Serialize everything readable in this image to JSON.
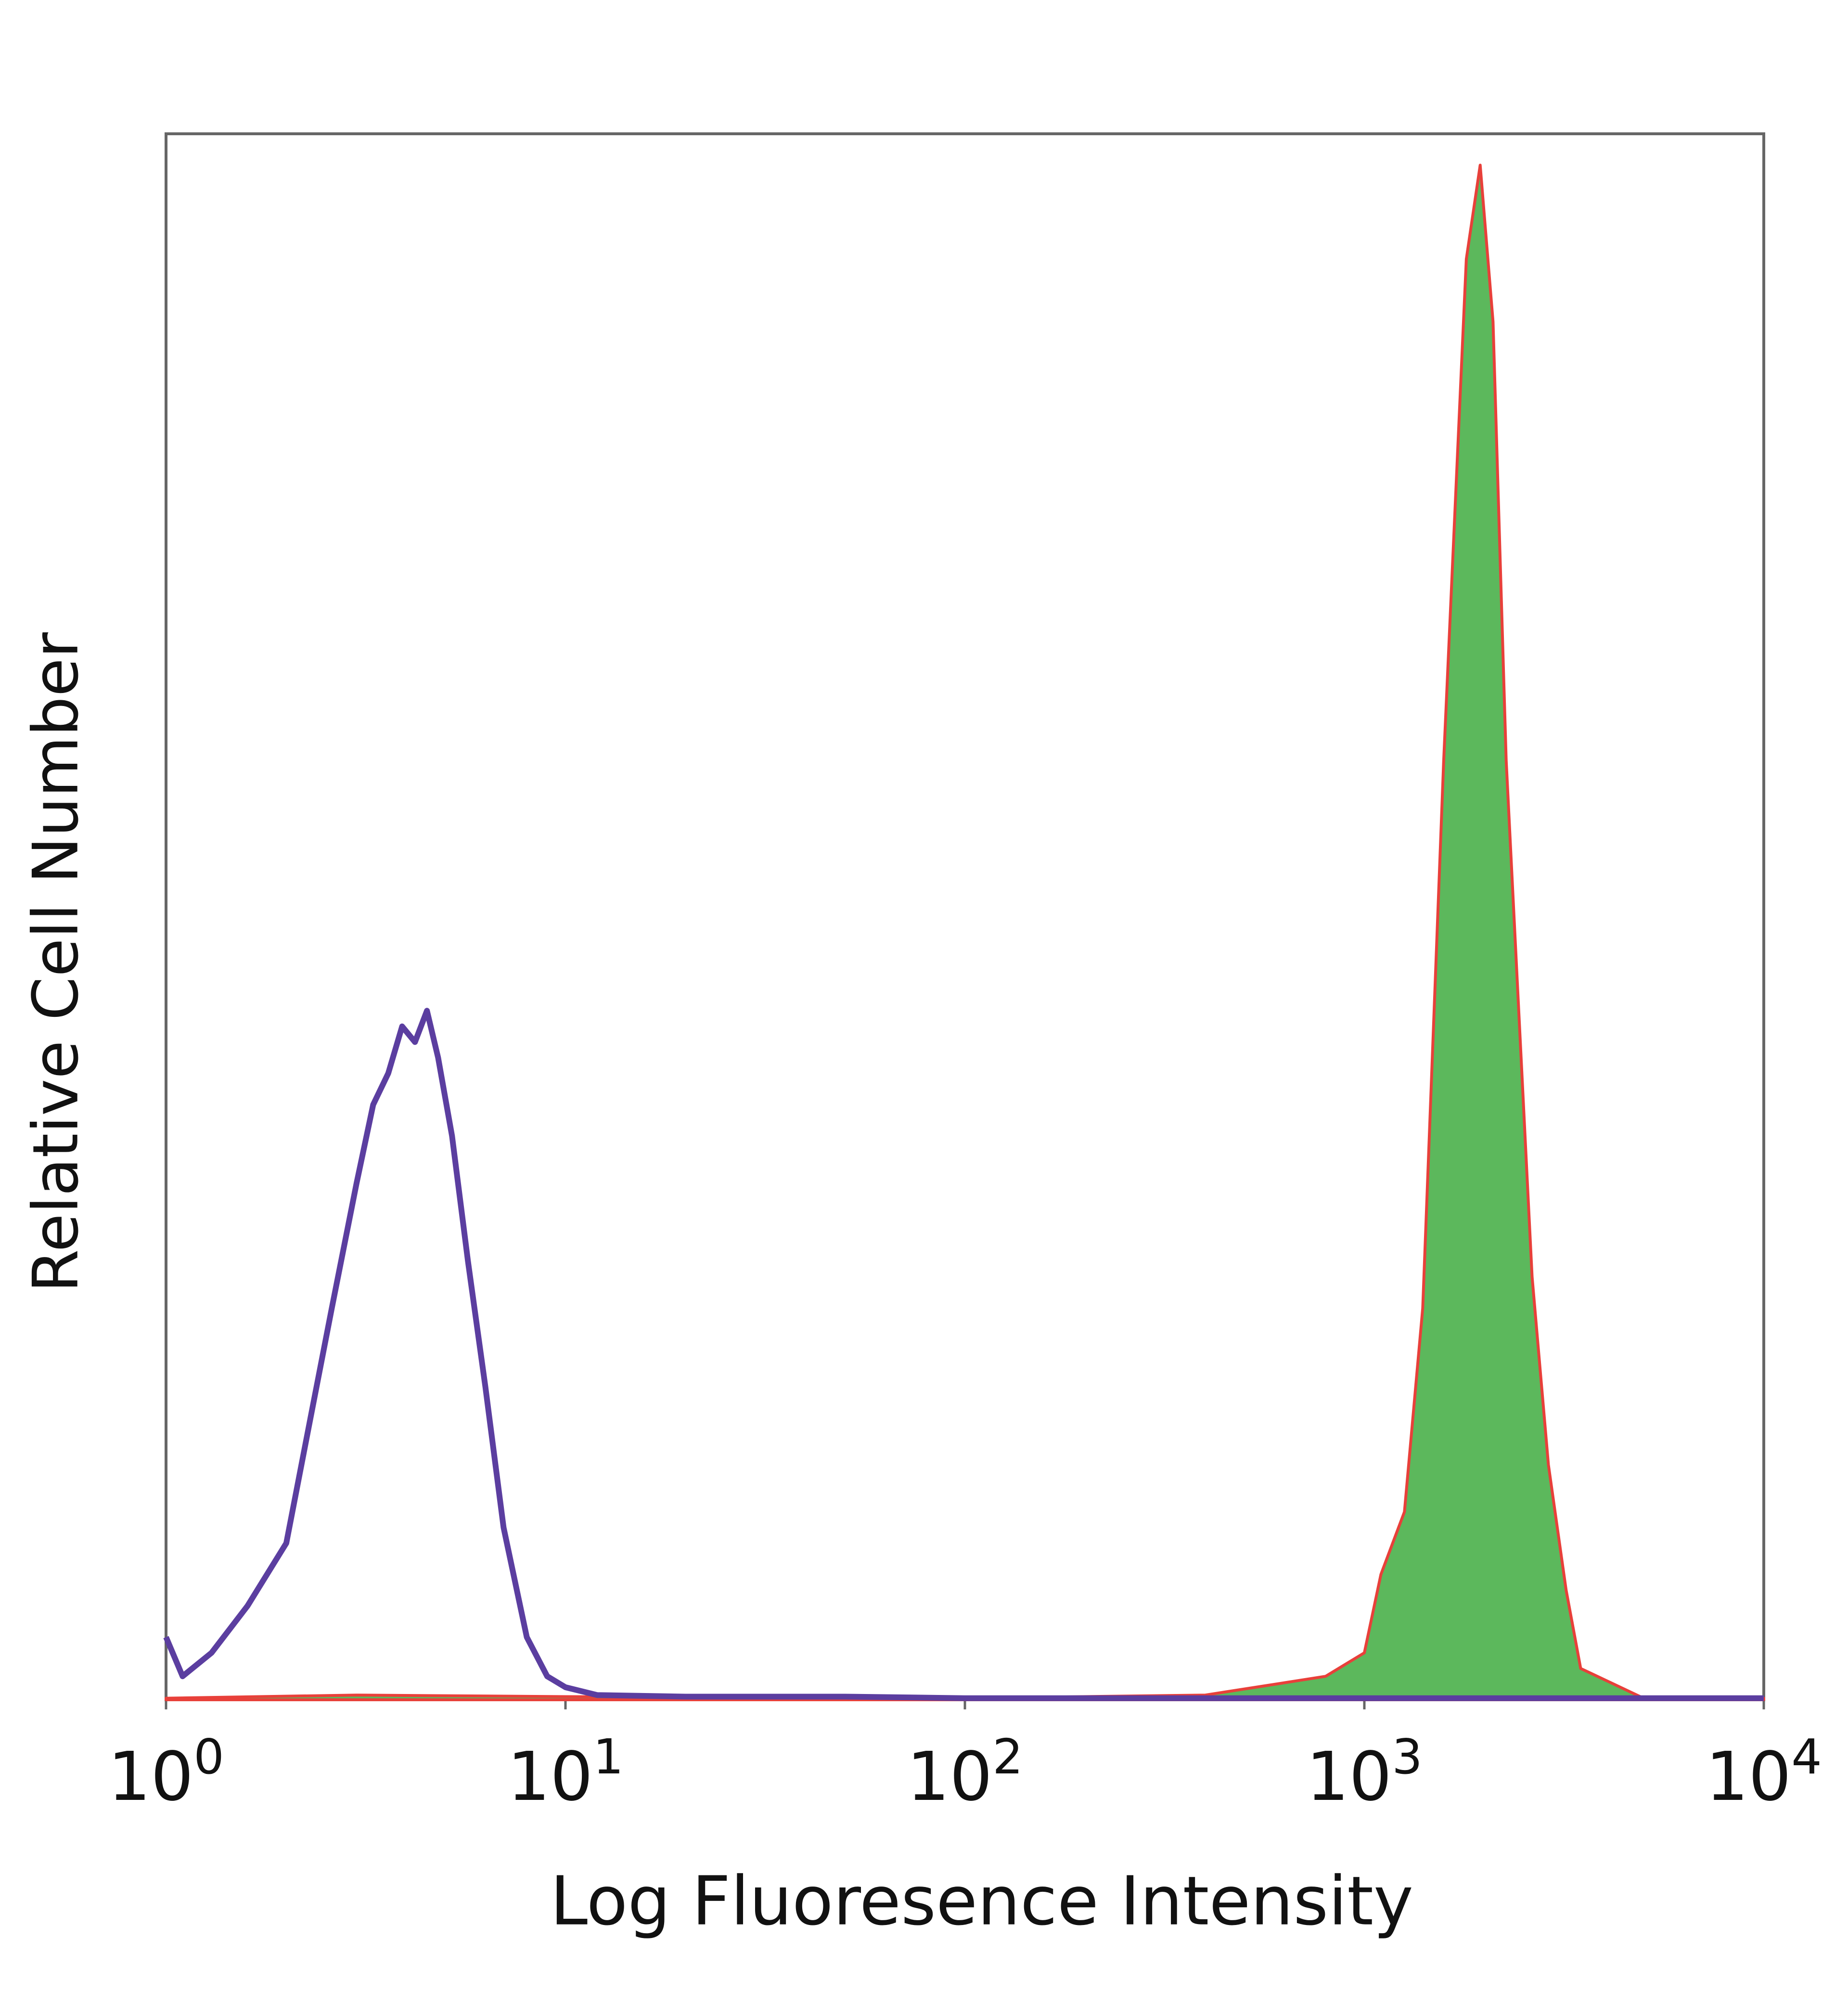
{
  "chart_data": {
    "type": "histogram-overlay",
    "x_label": "Log Fluoresence Intensity",
    "y_label": "Relative Cell Number",
    "xscale": "log",
    "xlim": [
      1,
      10000
    ],
    "ylim": [
      0,
      100
    ],
    "xticks": [
      {
        "value": 1,
        "label": "10",
        "power": "0"
      },
      {
        "value": 10,
        "label": "10",
        "power": "1"
      },
      {
        "value": 100,
        "label": "10",
        "power": "2"
      },
      {
        "value": 1000,
        "label": "10",
        "power": "3"
      },
      {
        "value": 10000,
        "label": "10",
        "power": "4"
      }
    ],
    "series": [
      {
        "color": "#5b3ea0",
        "filled": false,
        "x": [
          1,
          1.1,
          1.3,
          1.6,
          2.0,
          2.3,
          2.6,
          3.0,
          3.3,
          3.6,
          3.9,
          4.2,
          4.5,
          4.8,
          5.2,
          5.7,
          6.3,
          7.0,
          8.0,
          9.0,
          10,
          12,
          20,
          50,
          100,
          1000,
          10000
        ],
        "values": [
          4,
          1.5,
          3,
          6,
          10,
          18,
          25,
          33,
          38,
          40,
          43,
          42,
          44,
          41,
          36,
          28,
          20,
          11,
          4,
          1.5,
          0.8,
          0.3,
          0.2,
          0.2,
          0.1,
          0.1,
          0.1
        ]
      },
      {
        "color": "#e8403a",
        "fill": "#5cb85c",
        "filled": true,
        "x": [
          1,
          3,
          10,
          100,
          400,
          600,
          800,
          1000,
          1100,
          1260,
          1400,
          1580,
          1800,
          1950,
          2100,
          2265,
          2630,
          2890,
          3200,
          3480,
          5000,
          10000
        ],
        "values": [
          0.1,
          0.3,
          0.2,
          0.1,
          0.3,
          1,
          1.5,
          3,
          8,
          12,
          25,
          60,
          92,
          98,
          88,
          60,
          27,
          15,
          7,
          2,
          0.1,
          0.1
        ]
      }
    ]
  }
}
